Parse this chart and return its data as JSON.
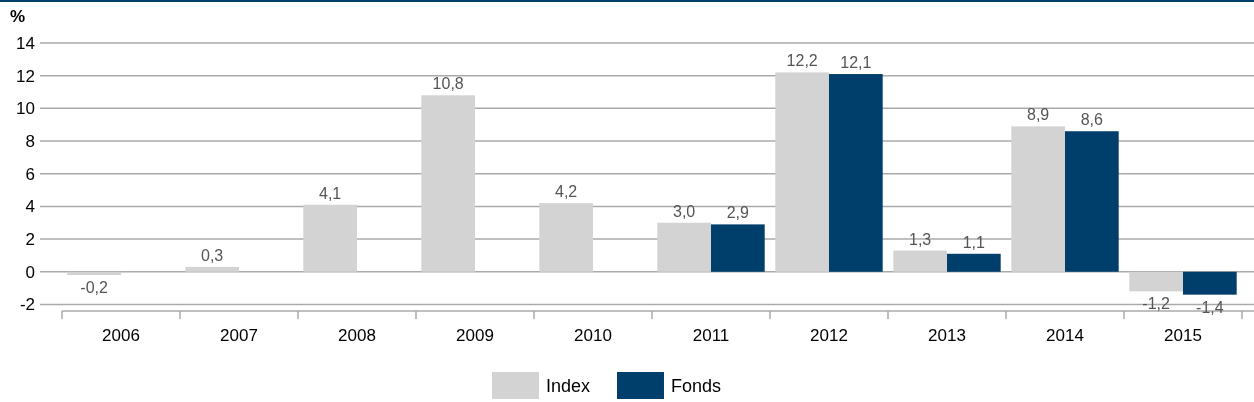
{
  "chart_data": {
    "type": "bar",
    "ylabel": "%",
    "categories": [
      "2006",
      "2007",
      "2008",
      "2009",
      "2010",
      "2011",
      "2012",
      "2013",
      "2014",
      "2015"
    ],
    "series": [
      {
        "name": "Index",
        "color": "#d3d3d3",
        "values": [
          -0.2,
          0.3,
          4.1,
          10.8,
          4.2,
          3.0,
          12.2,
          1.3,
          8.9,
          -1.2
        ],
        "value_labels": [
          "-0,2",
          "0,3",
          "4,1",
          "10,8",
          "4,2",
          "3,0",
          "12,2",
          "1,3",
          "8,9",
          "-1,2"
        ]
      },
      {
        "name": "Fonds",
        "color": "#003f6b",
        "values": [
          null,
          null,
          null,
          null,
          null,
          2.9,
          12.1,
          1.1,
          8.6,
          -1.4
        ],
        "value_labels": [
          null,
          null,
          null,
          null,
          null,
          "2,9",
          "12,1",
          "1,1",
          "8,6",
          "-1,4"
        ]
      }
    ],
    "ylim": [
      -2.4,
      14
    ],
    "yticks": [
      -2,
      0,
      2,
      4,
      6,
      8,
      10,
      12,
      14
    ],
    "grid": "y",
    "legend": "bottom"
  }
}
